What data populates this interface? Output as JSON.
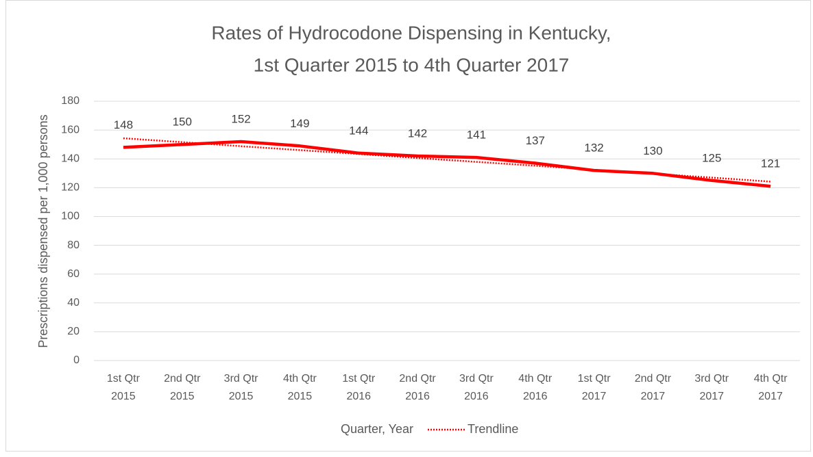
{
  "chart_data": {
    "type": "line",
    "title": "Rates of Hydrocodone Dispensing in Kentucky,",
    "subtitle": "1st Quarter 2015 to 4th Quarter 2017",
    "x_label": "Quarter, Year",
    "y_label": "Prescriptions dispensed per 1,000 persons",
    "categories": [
      "1st Qtr 2015",
      "2nd Qtr 2015",
      "3rd Qtr 2015",
      "4th Qtr 2015",
      "1st Qtr 2016",
      "2nd Qtr 2016",
      "3rd Qtr 2016",
      "4th Qtr 2016",
      "1st Qtr 2017",
      "2nd Qtr 2017",
      "3rd Qtr 2017",
      "4th Qtr 2017"
    ],
    "series": [
      {
        "color": "#ff0000",
        "values": [
          148,
          150,
          152,
          149,
          144,
          142,
          141,
          137,
          132,
          130,
          125,
          121
        ],
        "data_labels": true
      },
      {
        "name": "Trendline",
        "color": "#ff0000",
        "dashed": true,
        "values": [
          154.3,
          151.6,
          148.8,
          146.1,
          143.4,
          140.6,
          137.9,
          135.2,
          132.4,
          129.7,
          127.0,
          124.2
        ]
      }
    ],
    "ylim": [
      0,
      180
    ],
    "yticks": [
      0,
      20,
      40,
      60,
      80,
      100,
      120,
      140,
      160,
      180
    ],
    "grid": true
  }
}
